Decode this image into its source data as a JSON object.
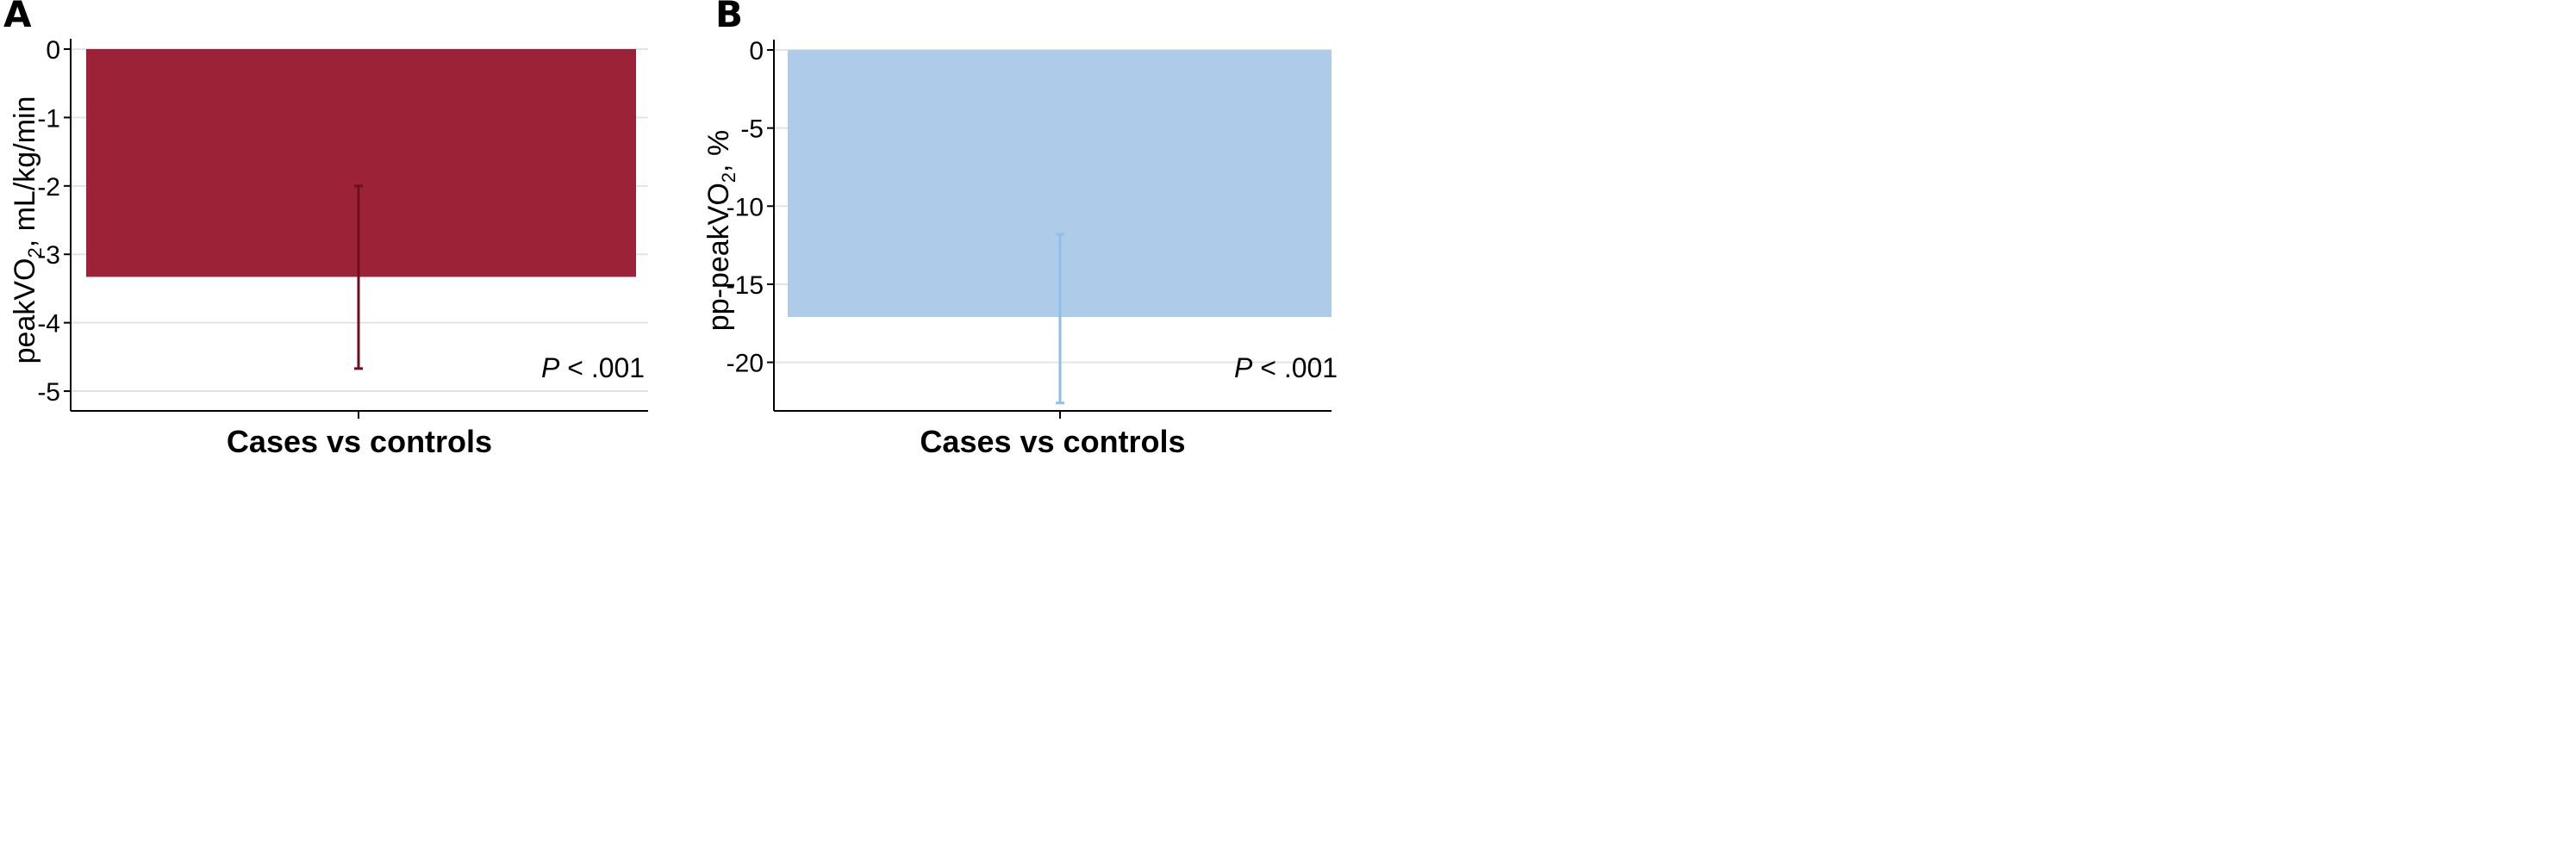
{
  "panels": [
    {
      "label": "A",
      "ylabel_main": "peakVO",
      "ylabel_sub": "2",
      "ylabel_rest": ", mL/kg/min",
      "xlabel": "Cases vs controls",
      "annotation_italic": "P",
      "annotation_rest": " < .001",
      "bar_color": "#9c2237",
      "error_color": "#6e0f1f",
      "grid_color": "#e3e3e3"
    },
    {
      "label": "B",
      "ylabel_main": "pp-peakVO",
      "ylabel_sub": "2",
      "ylabel_rest": ", %",
      "xlabel": "Cases vs controls",
      "annotation_italic": "P",
      "annotation_rest": " < .001",
      "bar_color": "#aecbea",
      "error_color": "#8fbfe8",
      "grid_color": "#e3e3e3"
    }
  ],
  "chart_data": [
    {
      "type": "bar",
      "categories": [
        "Cases vs controls"
      ],
      "values": [
        -3.33
      ],
      "error_low": [
        -4.67
      ],
      "error_high": [
        -2.0
      ],
      "ylim": [
        -5.1,
        0
      ],
      "yticks": [
        0,
        -1,
        -2,
        -3,
        -4,
        -5
      ],
      "ytick_labels": [
        "0",
        "-1",
        "-2",
        "-3",
        "-4",
        "-5"
      ],
      "xlabel": "Cases vs controls",
      "ylabel": "peakVO2, mL/kg/min",
      "annotation": "P < .001",
      "grid": true
    },
    {
      "type": "bar",
      "categories": [
        "Cases vs controls"
      ],
      "values": [
        -17.1
      ],
      "error_low": [
        -22.6
      ],
      "error_high": [
        -11.8
      ],
      "ylim": [
        -23,
        0
      ],
      "yticks": [
        0,
        -5,
        -10,
        -15,
        -20
      ],
      "ytick_labels": [
        "0",
        "-5",
        "-10",
        "-15",
        "-20"
      ],
      "xlabel": "Cases vs controls",
      "ylabel": "pp-peakVO2, %",
      "annotation": "P < .001",
      "grid": true
    }
  ]
}
